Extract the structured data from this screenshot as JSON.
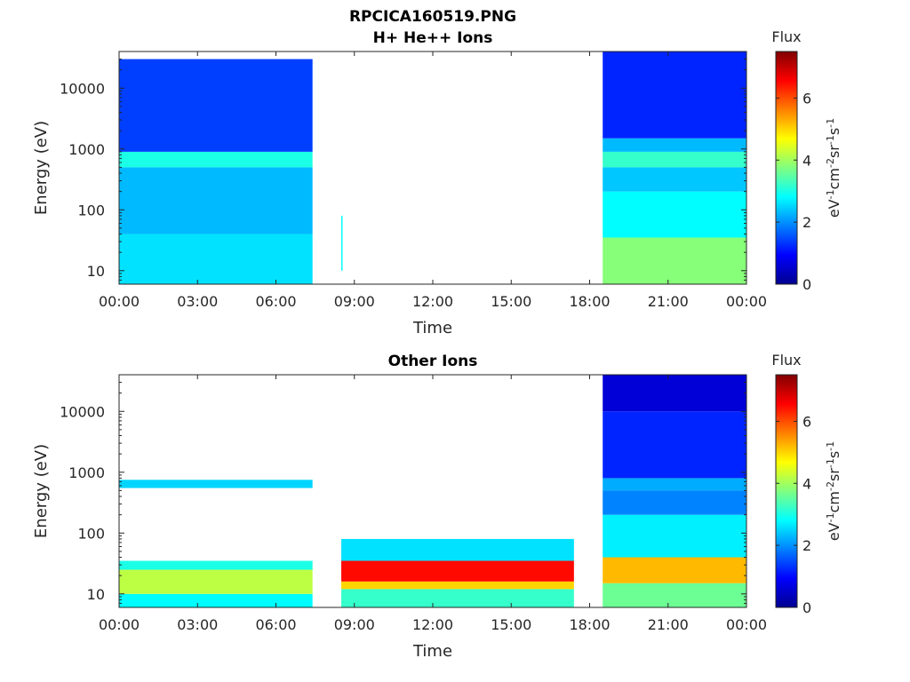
{
  "figure": {
    "title": "RPCICA160519.PNG"
  },
  "colormap": [
    "#00008f",
    "#0000ff",
    "#0080ff",
    "#00ffff",
    "#80ff80",
    "#ffff00",
    "#ff8000",
    "#ff0000",
    "#800000"
  ],
  "chart_data": [
    {
      "type": "heatmap",
      "title": "H+ He++ Ions",
      "xlabel": "Time",
      "ylabel": "Energy (eV)",
      "yscale": "log",
      "ylim": [
        6,
        40000
      ],
      "yticks": [
        "10",
        "100",
        "1000",
        "10000"
      ],
      "xticks": [
        "00:00",
        "03:00",
        "06:00",
        "09:00",
        "12:00",
        "15:00",
        "18:00",
        "21:00",
        "00:00"
      ],
      "colorbar": {
        "title": "Flux",
        "units": "eV-1cm-2sr-1s-1",
        "range": [
          0,
          7.5
        ],
        "ticks": [
          "0",
          "2",
          "4",
          "6"
        ]
      },
      "segments": [
        {
          "start_h": 0.0,
          "end_h": 7.4,
          "bands": [
            {
              "e_low": 6,
              "e_high": 40,
              "flux": 2.6
            },
            {
              "e_low": 40,
              "e_high": 500,
              "flux": 2.3
            },
            {
              "e_low": 500,
              "e_high": 900,
              "flux": 3.0
            },
            {
              "e_low": 900,
              "e_high": 30000,
              "flux": 1.4
            }
          ]
        },
        {
          "start_h": 8.5,
          "end_h": 8.55,
          "bands": [
            {
              "e_low": 10,
              "e_high": 80,
              "flux": 2.8
            }
          ]
        },
        {
          "start_h": 18.5,
          "end_h": 24.0,
          "bands": [
            {
              "e_low": 6,
              "e_high": 35,
              "flux": 3.8
            },
            {
              "e_low": 35,
              "e_high": 200,
              "flux": 2.8
            },
            {
              "e_low": 200,
              "e_high": 500,
              "flux": 2.4
            },
            {
              "e_low": 500,
              "e_high": 900,
              "flux": 3.2
            },
            {
              "e_low": 900,
              "e_high": 1500,
              "flux": 2.3
            },
            {
              "e_low": 1500,
              "e_high": 40000,
              "flux": 1.2
            }
          ]
        }
      ]
    },
    {
      "type": "heatmap",
      "title": "Other Ions",
      "xlabel": "Time",
      "ylabel": "Energy (eV)",
      "yscale": "log",
      "ylim": [
        6,
        40000
      ],
      "yticks": [
        "10",
        "100",
        "1000",
        "10000"
      ],
      "xticks": [
        "00:00",
        "03:00",
        "06:00",
        "09:00",
        "12:00",
        "15:00",
        "18:00",
        "21:00",
        "00:00"
      ],
      "colorbar": {
        "title": "Flux",
        "units": "eV-1cm-2sr-1s-1",
        "range": [
          0,
          7.5
        ],
        "ticks": [
          "0",
          "2",
          "4",
          "6"
        ]
      },
      "segments": [
        {
          "start_h": 0.0,
          "end_h": 7.4,
          "bands": [
            {
              "e_low": 6,
              "e_high": 10,
              "flux": 2.8
            },
            {
              "e_low": 10,
              "e_high": 25,
              "flux": 4.2
            },
            {
              "e_low": 25,
              "e_high": 35,
              "flux": 3.0
            },
            {
              "e_low": 550,
              "e_high": 750,
              "flux": 2.5
            }
          ]
        },
        {
          "start_h": 8.5,
          "end_h": 17.4,
          "bands": [
            {
              "e_low": 6,
              "e_high": 12,
              "flux": 3.2
            },
            {
              "e_low": 12,
              "e_high": 16,
              "flux": 5.0
            },
            {
              "e_low": 16,
              "e_high": 35,
              "flux": 6.5
            },
            {
              "e_low": 35,
              "e_high": 80,
              "flux": 2.6
            }
          ]
        },
        {
          "start_h": 18.5,
          "end_h": 24.0,
          "bands": [
            {
              "e_low": 6,
              "e_high": 15,
              "flux": 3.6
            },
            {
              "e_low": 15,
              "e_high": 40,
              "flux": 5.2
            },
            {
              "e_low": 40,
              "e_high": 200,
              "flux": 2.7
            },
            {
              "e_low": 200,
              "e_high": 500,
              "flux": 1.9
            },
            {
              "e_low": 500,
              "e_high": 800,
              "flux": 2.2
            },
            {
              "e_low": 800,
              "e_high": 10000,
              "flux": 1.2
            },
            {
              "e_low": 10000,
              "e_high": 40000,
              "flux": 0.6
            }
          ]
        }
      ]
    }
  ]
}
